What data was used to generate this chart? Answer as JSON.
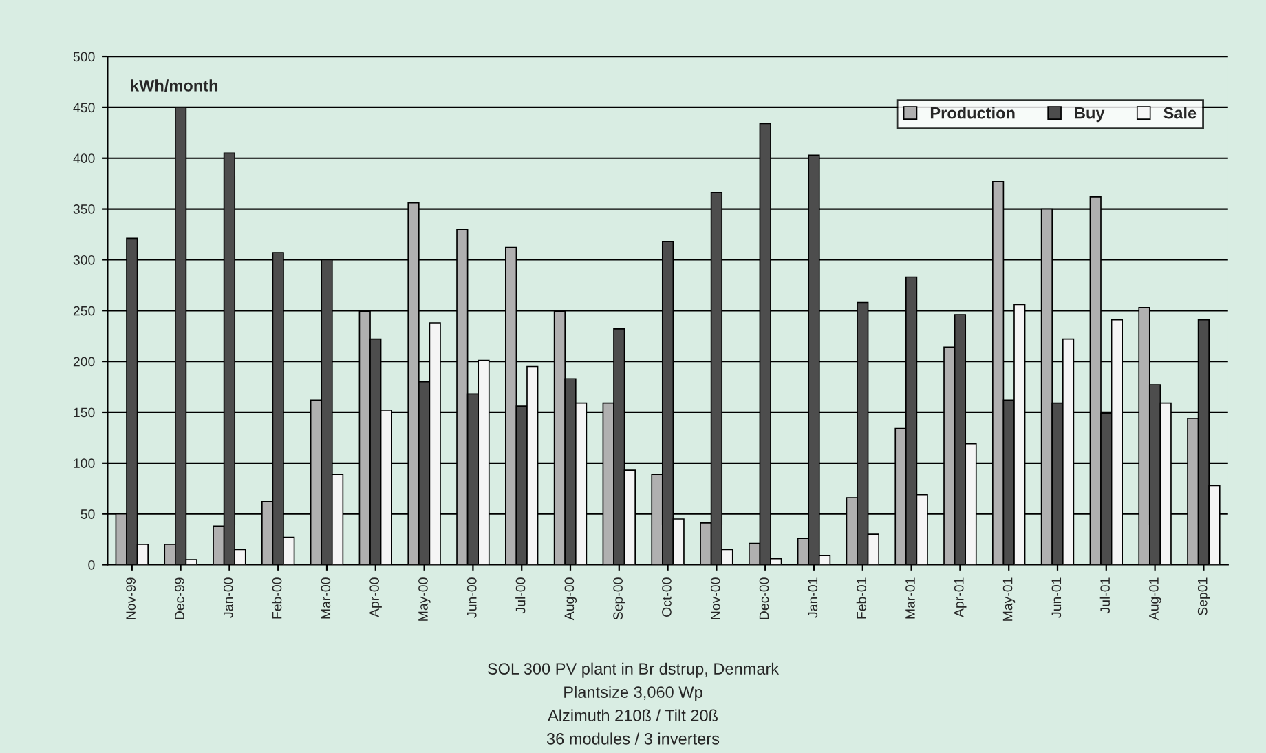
{
  "chart_data": {
    "type": "bar",
    "ylabel": "kWh/month",
    "categories": [
      "Nov-99",
      "Dec-99",
      "Jan-00",
      "Feb-00",
      "Mar-00",
      "Apr-00",
      "May-00",
      "Jun-00",
      "Jul-00",
      "Aug-00",
      "Sep-00",
      "Oct-00",
      "Nov-00",
      "Dec-00",
      "Jan-01",
      "Feb-01",
      "Mar-01",
      "Apr-01",
      "May-01",
      "Jun-01",
      "Jul-01",
      "Aug-01",
      "Sep01"
    ],
    "series": [
      {
        "name": "Production",
        "color": "#b0b0b0",
        "values": [
          50,
          20,
          38,
          62,
          162,
          249,
          356,
          330,
          312,
          249,
          159,
          89,
          41,
          21,
          26,
          66,
          134,
          214,
          377,
          350,
          362,
          253,
          144
        ]
      },
      {
        "name": "Buy",
        "color": "#4d4d4d",
        "values": [
          321,
          450,
          405,
          307,
          300,
          222,
          180,
          168,
          156,
          183,
          232,
          318,
          366,
          434,
          403,
          258,
          283,
          246,
          162,
          159,
          149,
          177,
          241
        ]
      },
      {
        "name": "Sale",
        "color": "#f5f5f5",
        "values": [
          20,
          5,
          15,
          27,
          89,
          152,
          238,
          201,
          195,
          159,
          93,
          45,
          15,
          6,
          9,
          30,
          69,
          119,
          256,
          222,
          241,
          159,
          78
        ]
      }
    ],
    "ylim": [
      0,
      500
    ],
    "yticks": [
      0,
      50,
      100,
      150,
      200,
      250,
      300,
      350,
      400,
      450,
      500
    ],
    "grid": "y",
    "legend": "top right",
    "annotations": [
      "SOL 300 PV plant in Br dstrup, Denmark",
      "Plantsize 3,060 Wp",
      "Alzimuth 210ß / Tilt 20ß",
      "36 modules / 3 inverters"
    ]
  }
}
